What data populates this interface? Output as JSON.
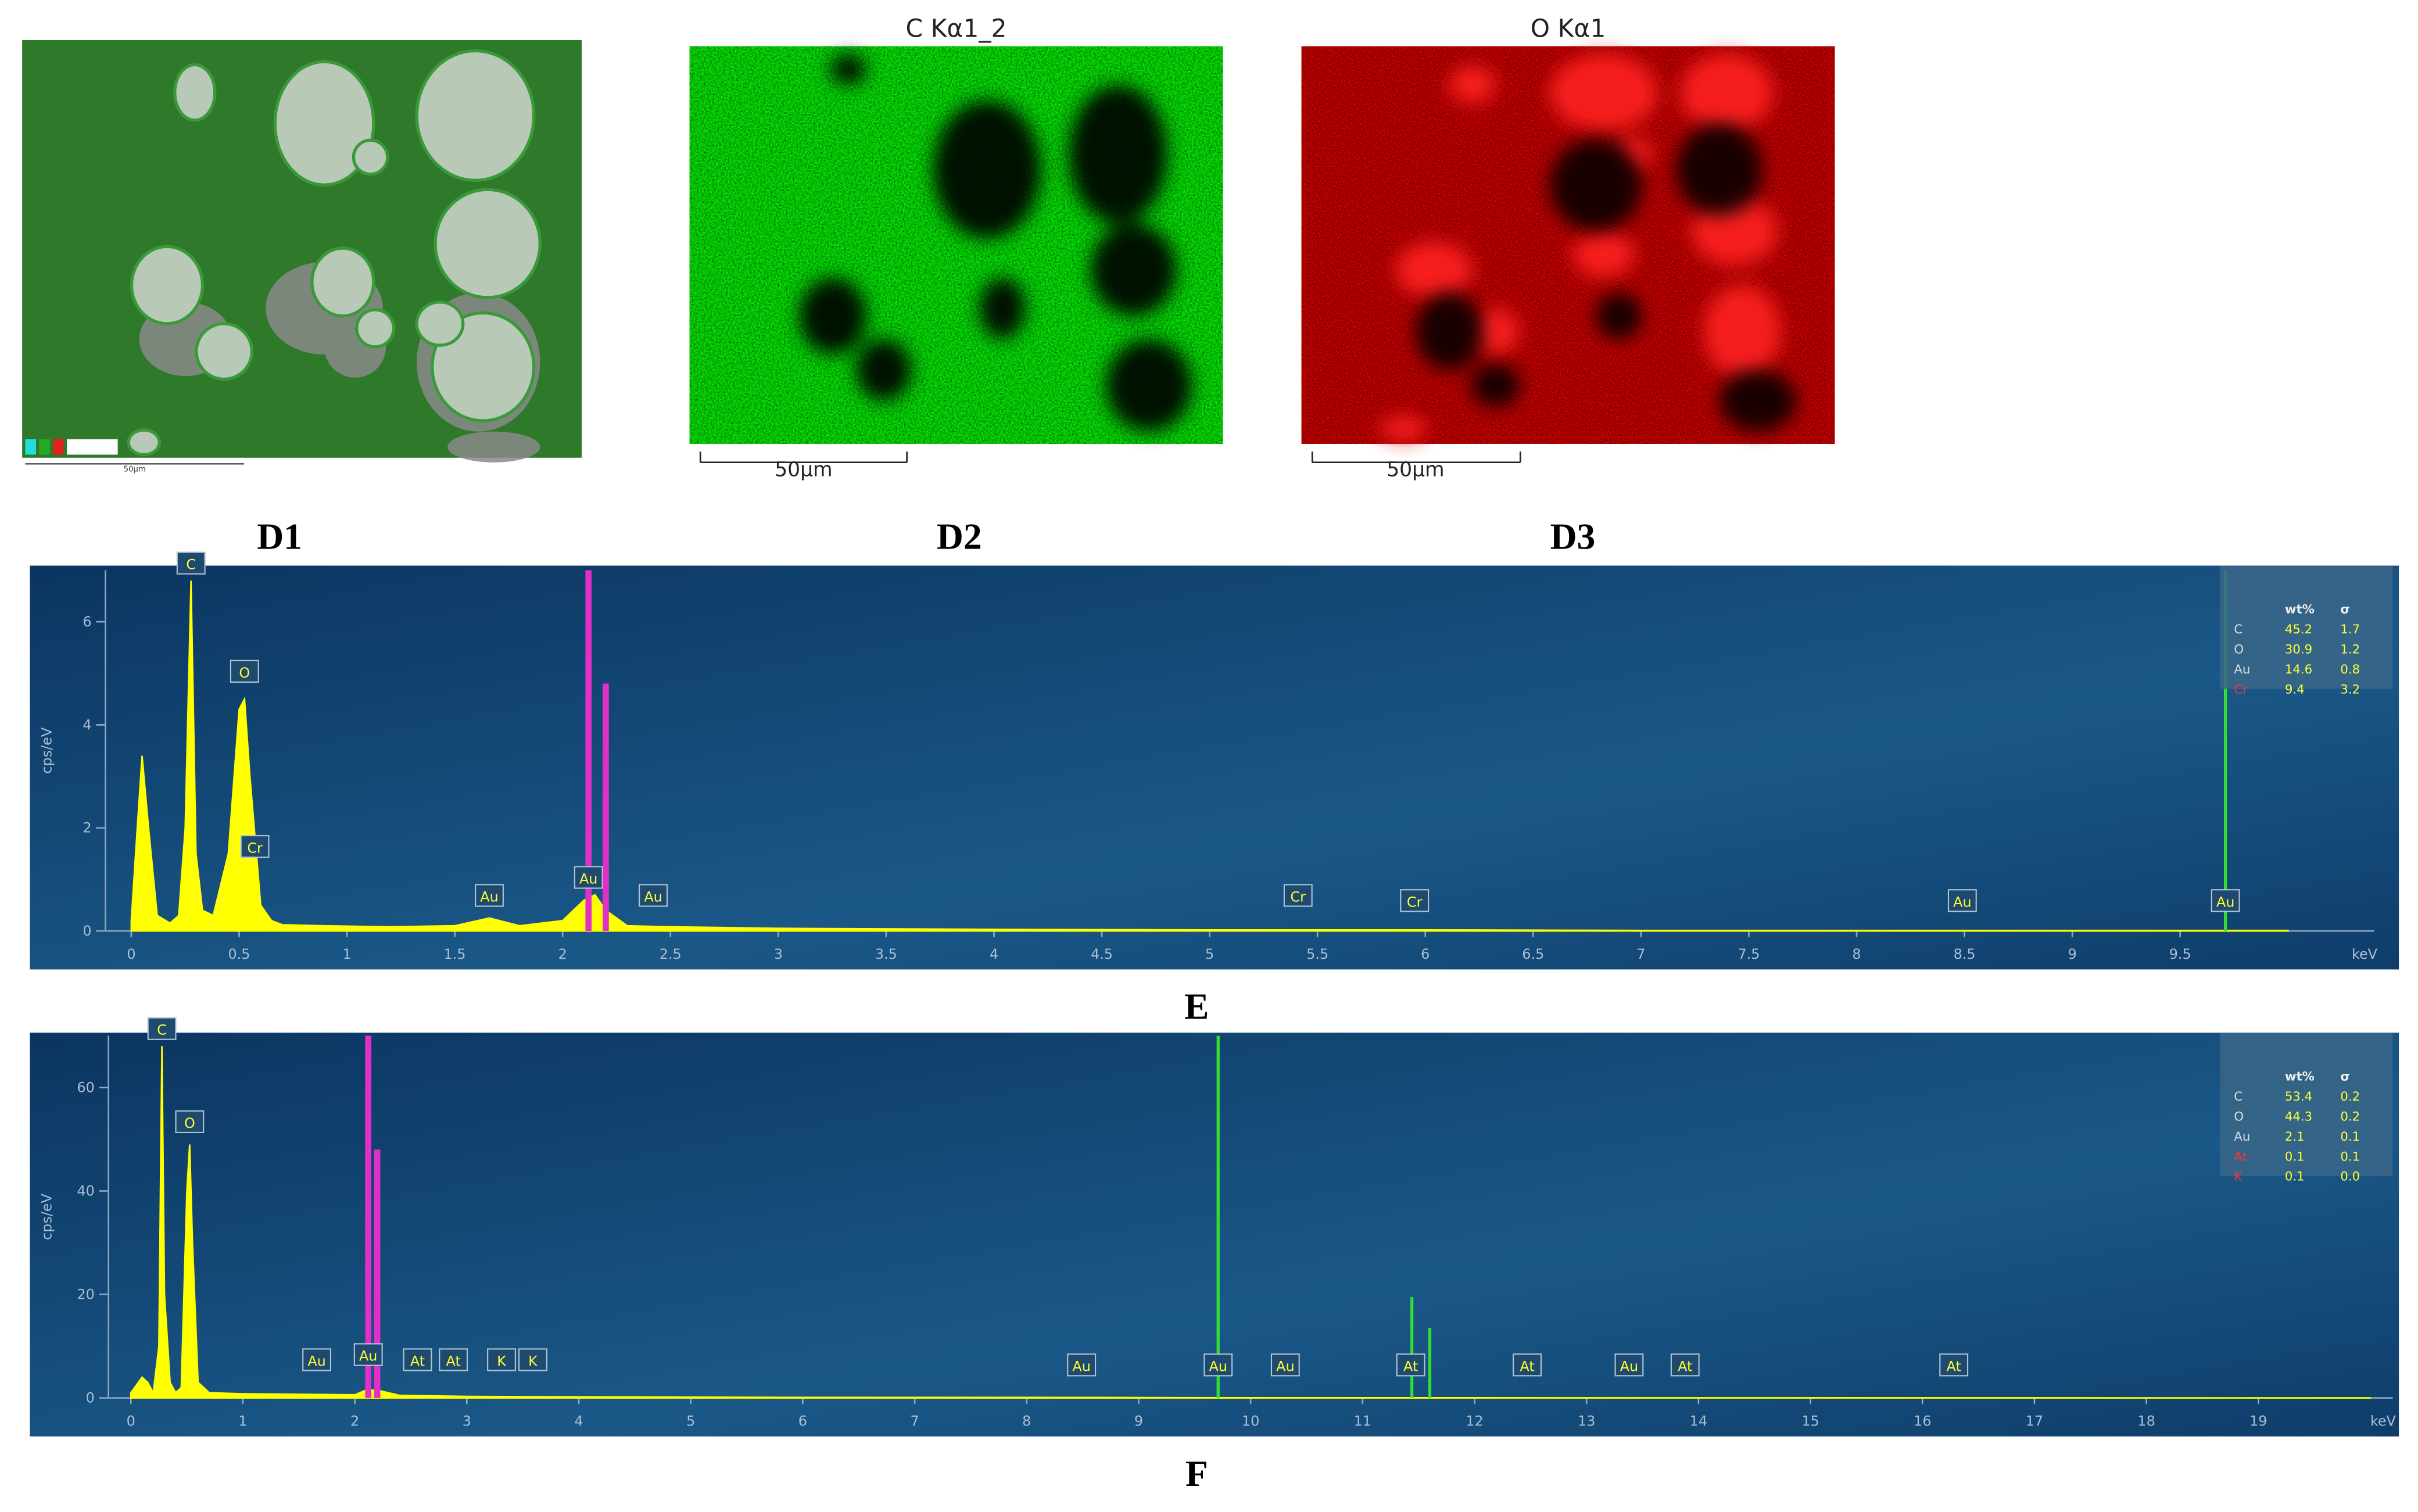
{
  "maps": [
    {
      "label": "D1",
      "scale": "50μm"
    },
    {
      "title": "C Kα1_2",
      "label": "D2",
      "scale": "50μm"
    },
    {
      "title": "O Kα1",
      "label": "D3",
      "scale": "50μm"
    }
  ],
  "chart_data": [
    {
      "type": "area",
      "label": "E",
      "xlabel": "keV",
      "ylabel": "cps/eV",
      "x": [
        0,
        0.02,
        0.05,
        0.08,
        0.12,
        0.18,
        0.22,
        0.25,
        0.277,
        0.3,
        0.33,
        0.38,
        0.45,
        0.5,
        0.525,
        0.55,
        0.6,
        0.65,
        0.7,
        0.9,
        1.2,
        1.5,
        1.66,
        1.8,
        2.0,
        2.1,
        2.15,
        2.2,
        2.3,
        2.5,
        3,
        4,
        5,
        6,
        7,
        8,
        9,
        10
      ],
      "series": [
        {
          "name": "spectrum",
          "color": "#ffff00",
          "values": [
            0.2,
            1.5,
            3.4,
            2,
            0.3,
            0.15,
            0.3,
            2,
            6.8,
            1.5,
            0.4,
            0.3,
            1.5,
            4.3,
            4.5,
            3,
            0.5,
            0.2,
            0.12,
            0.1,
            0.08,
            0.1,
            0.25,
            0.1,
            0.2,
            0.6,
            0.7,
            0.4,
            0.1,
            0.08,
            0.05,
            0.03,
            0.02,
            0.02,
            0.01,
            0.01,
            0.01,
            0.01
          ]
        }
      ],
      "markers": [
        {
          "x": 2.12,
          "y": 7,
          "color": "#e030c8"
        },
        {
          "x": 2.2,
          "y": 4.8,
          "color": "#e030c8"
        },
        {
          "x": 9.71,
          "y": 7,
          "color": "#33dd33"
        }
      ],
      "annotations": [
        {
          "text": "C",
          "x": 0.277,
          "y": 6.9
        },
        {
          "text": "O",
          "x": 0.525,
          "y": 4.8
        },
        {
          "text": "Cr",
          "x": 0.573,
          "y": 1.4
        },
        {
          "text": "Au",
          "x": 1.66,
          "y": 0.45
        },
        {
          "text": "Au",
          "x": 2.12,
          "y": 0.8
        },
        {
          "text": "Au",
          "x": 2.42,
          "y": 0.45
        },
        {
          "text": "Cr",
          "x": 5.41,
          "y": 0.45
        },
        {
          "text": "Cr",
          "x": 5.95,
          "y": 0.35
        },
        {
          "text": "Au",
          "x": 8.49,
          "y": 0.35
        },
        {
          "text": "Au",
          "x": 9.71,
          "y": 0.35
        }
      ],
      "xlim": [
        -0.12,
        10.4
      ],
      "xticks": [
        0,
        0.5,
        1,
        1.5,
        2,
        2.5,
        3,
        3.5,
        4,
        4.5,
        5,
        5.5,
        6,
        6.5,
        7,
        7.5,
        8,
        8.5,
        9,
        9.5
      ],
      "ylim": [
        0,
        7
      ],
      "yticks": [
        0,
        2,
        4,
        6
      ],
      "table": {
        "header": [
          "wt%",
          "σ"
        ],
        "rows": [
          {
            "name": "C",
            "wt": "45.2",
            "sigma": "1.7",
            "color": "#dddddd"
          },
          {
            "name": "O",
            "wt": "30.9",
            "sigma": "1.2",
            "color": "#dddddd"
          },
          {
            "name": "Au",
            "wt": "14.6",
            "sigma": "0.8",
            "color": "#dddddd"
          },
          {
            "name": "Cr",
            "wt": "9.4",
            "sigma": "3.2",
            "color": "#ff3333"
          }
        ]
      }
    },
    {
      "type": "area",
      "label": "F",
      "xlabel": "keV",
      "ylabel": "cps/eV",
      "x": [
        0,
        0.1,
        0.15,
        0.2,
        0.25,
        0.277,
        0.3,
        0.35,
        0.4,
        0.45,
        0.5,
        0.525,
        0.55,
        0.6,
        0.7,
        1,
        1.5,
        2,
        2.1,
        2.2,
        2.4,
        3,
        4,
        6,
        8,
        10,
        14,
        20
      ],
      "series": [
        {
          "name": "spectrum",
          "color": "#ffff00",
          "values": [
            1,
            4,
            3,
            1,
            10,
            68,
            20,
            3,
            1,
            2,
            40,
            49,
            30,
            3,
            1,
            0.8,
            0.7,
            0.6,
            1.5,
            1.5,
            0.5,
            0.3,
            0.2,
            0.1,
            0.1,
            0.05,
            0.03,
            0.02
          ]
        }
      ],
      "markers": [
        {
          "x": 2.12,
          "y": 70,
          "color": "#e030c8"
        },
        {
          "x": 2.2,
          "y": 48,
          "color": "#e030c8"
        },
        {
          "x": 9.71,
          "y": 70,
          "color": "#33dd33"
        },
        {
          "x": 11.44,
          "y": 19.5,
          "color": "#33dd33"
        },
        {
          "x": 11.6,
          "y": 13.5,
          "color": "#33dd33"
        }
      ],
      "annotations": [
        {
          "text": "C",
          "x": 0.277,
          "y": 69
        },
        {
          "text": "O",
          "x": 0.525,
          "y": 51
        },
        {
          "text": "Au",
          "x": 1.66,
          "y": 5
        },
        {
          "text": "Au",
          "x": 2.12,
          "y": 6
        },
        {
          "text": "At",
          "x": 2.56,
          "y": 5
        },
        {
          "text": "At",
          "x": 2.88,
          "y": 5
        },
        {
          "text": "K",
          "x": 3.31,
          "y": 5
        },
        {
          "text": "K",
          "x": 3.59,
          "y": 5
        },
        {
          "text": "Au",
          "x": 8.49,
          "y": 4
        },
        {
          "text": "Au",
          "x": 9.71,
          "y": 4
        },
        {
          "text": "Au",
          "x": 10.31,
          "y": 4
        },
        {
          "text": "At",
          "x": 11.43,
          "y": 4
        },
        {
          "text": "At",
          "x": 12.47,
          "y": 4
        },
        {
          "text": "Au",
          "x": 13.38,
          "y": 4
        },
        {
          "text": "At",
          "x": 13.88,
          "y": 4
        },
        {
          "text": "At",
          "x": 16.28,
          "y": 4
        }
      ],
      "xlim": [
        -0.2,
        20.2
      ],
      "xticks": [
        0,
        1,
        2,
        3,
        4,
        5,
        6,
        7,
        8,
        9,
        10,
        11,
        12,
        13,
        14,
        15,
        16,
        17,
        18,
        19
      ],
      "ylim": [
        0,
        70
      ],
      "yticks": [
        0,
        20,
        40,
        60
      ],
      "table": {
        "header": [
          "wt%",
          "σ"
        ],
        "rows": [
          {
            "name": "C",
            "wt": "53.4",
            "sigma": "0.2",
            "color": "#dddddd"
          },
          {
            "name": "O",
            "wt": "44.3",
            "sigma": "0.2",
            "color": "#dddddd"
          },
          {
            "name": "Au",
            "wt": "2.1",
            "sigma": "0.1",
            "color": "#dddddd"
          },
          {
            "name": "At",
            "wt": "0.1",
            "sigma": "0.1",
            "color": "#ff3333"
          },
          {
            "name": "K",
            "wt": "0.1",
            "sigma": "0.0",
            "color": "#ff3333"
          }
        ]
      }
    }
  ]
}
